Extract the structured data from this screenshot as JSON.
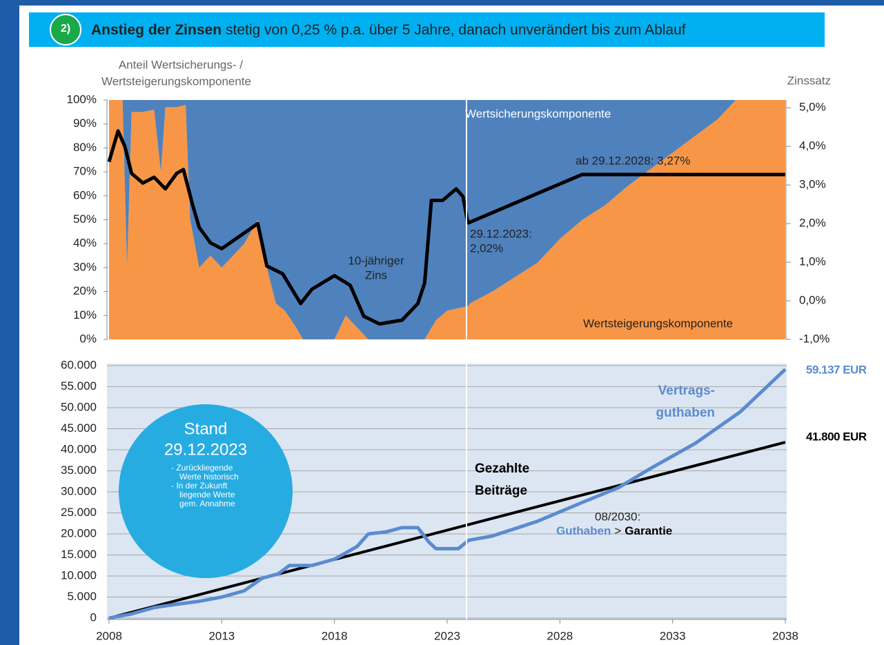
{
  "banner": {
    "number": "2)",
    "title_bold": "Anstieg der Zinsen",
    "title_rest": "stetig von 0,25 % p.a. über 5 Jahre, danach unverändert bis zum Ablauf"
  },
  "chart_data": [
    {
      "type": "area",
      "stacked": true,
      "y_label": [
        "Anteil Wertsicherungs- /",
        "Wertsteigerungskomponente"
      ],
      "y2_label": "Zinssatz",
      "xlim": [
        2008,
        2038
      ],
      "ylim": [
        0,
        100
      ],
      "yticks": [
        {
          "value": 0,
          "label": "0%"
        },
        {
          "value": 10,
          "label": "10%"
        },
        {
          "value": 20,
          "label": "20%"
        },
        {
          "value": 30,
          "label": "30%"
        },
        {
          "value": 40,
          "label": "40%"
        },
        {
          "value": 50,
          "label": "50%"
        },
        {
          "value": 60,
          "label": "60%"
        },
        {
          "value": 70,
          "label": "70%"
        },
        {
          "value": 80,
          "label": "80%"
        },
        {
          "value": 90,
          "label": "90%"
        },
        {
          "value": 100,
          "label": "100%"
        }
      ],
      "y2lim": [
        -1,
        5.2
      ],
      "y2ticks": [
        {
          "value": -1,
          "label": "-1,0%"
        },
        {
          "value": 0,
          "label": "0,0%"
        },
        {
          "value": 1,
          "label": "1,0%"
        },
        {
          "value": 2,
          "label": "2,0%"
        },
        {
          "value": 3,
          "label": "3,0%"
        },
        {
          "value": 4,
          "label": "4,0%"
        },
        {
          "value": 5,
          "label": "5,0%"
        }
      ],
      "series": [
        {
          "name": "Wertsteigerungskomponente",
          "color": "#f79646",
          "x": [
            2008,
            2008.6,
            2008.8,
            2009,
            2009.5,
            2010,
            2010.3,
            2010.5,
            2011,
            2011.4,
            2011.6,
            2012,
            2012.5,
            2013,
            2013.5,
            2014,
            2014.6,
            2015,
            2015.4,
            2015.8,
            2016.3,
            2016.6,
            2018,
            2018.5,
            2019,
            2019.5,
            2022,
            2022.5,
            2023,
            2023.95,
            2024,
            2025,
            2026,
            2027,
            2028,
            2029,
            2030,
            2031,
            2032,
            2033,
            2034,
            2035,
            2035.8,
            2038
          ],
          "values": [
            100,
            100,
            30,
            95,
            95,
            96,
            70,
            97,
            97,
            98,
            50,
            30,
            35,
            30,
            35,
            40,
            50,
            30,
            15,
            12,
            5,
            0,
            0,
            10,
            5,
            0,
            0,
            8,
            12,
            14,
            15,
            20,
            26,
            32,
            42,
            50,
            56,
            64,
            71,
            78,
            85,
            92,
            100,
            100
          ]
        },
        {
          "name": "Wertsicherungskomponente",
          "color": "#4f81bd",
          "x": [
            2008,
            2008.6,
            2008.8,
            2009,
            2009.5,
            2010,
            2010.3,
            2010.5,
            2011,
            2011.4,
            2011.6,
            2012,
            2012.5,
            2013,
            2013.5,
            2014,
            2014.6,
            2015,
            2015.4,
            2015.8,
            2016.3,
            2016.6,
            2018,
            2018.5,
            2019,
            2019.5,
            2022,
            2022.5,
            2023,
            2023.95,
            2024,
            2025,
            2026,
            2027,
            2028,
            2029,
            2030,
            2031,
            2032,
            2033,
            2034,
            2035,
            2035.8,
            2038
          ],
          "values": [
            0,
            0,
            70,
            5,
            5,
            4,
            30,
            3,
            3,
            2,
            50,
            70,
            65,
            70,
            65,
            60,
            50,
            70,
            85,
            88,
            95,
            100,
            100,
            90,
            95,
            100,
            100,
            92,
            88,
            86,
            85,
            80,
            74,
            68,
            58,
            50,
            44,
            36,
            29,
            22,
            15,
            8,
            0,
            0
          ]
        },
        {
          "name": [
            "10-jähriger",
            "Zins"
          ],
          "type": "line",
          "axis": "y2",
          "color": "#000000",
          "x": [
            2008,
            2008.4,
            2008.7,
            2009,
            2009.5,
            2010,
            2010.5,
            2011,
            2011.3,
            2011.7,
            2012,
            2012.5,
            2013,
            2014.6,
            2015,
            2015.7,
            2016.5,
            2017,
            2018,
            2018.7,
            2019.3,
            2020,
            2021,
            2021.7,
            2022,
            2022.3,
            2022.8,
            2023.4,
            2023.7,
            2023.9,
            2023.95,
            2028.98,
            2038
          ],
          "values": [
            3.6,
            4.4,
            4.0,
            3.3,
            3.05,
            3.2,
            2.9,
            3.3,
            3.4,
            2.5,
            1.9,
            1.5,
            1.35,
            2.0,
            0.9,
            0.7,
            -0.07,
            0.3,
            0.65,
            0.4,
            -0.4,
            -0.6,
            -0.5,
            -0.07,
            0.46,
            2.6,
            2.6,
            2.9,
            2.7,
            2.07,
            2.02,
            3.27,
            3.27
          ]
        }
      ],
      "annotations": [
        {
          "text": "ab 29.12.2028: 3,27%"
        },
        {
          "text": [
            "29.12.2023:",
            "2,02%"
          ]
        }
      ]
    },
    {
      "type": "line",
      "xlim": [
        2008,
        2038
      ],
      "xticks": [
        2008,
        2013,
        2018,
        2023,
        2028,
        2033,
        2038
      ],
      "ylim": [
        0,
        60000
      ],
      "yticks": [
        0,
        {
          "value": 5000,
          "label": "5.000"
        },
        {
          "value": 10000,
          "label": "10.000"
        },
        {
          "value": 15000,
          "label": "15.000"
        },
        {
          "value": 20000,
          "label": "20.000"
        },
        {
          "value": 25000,
          "label": "25.000"
        },
        {
          "value": 30000,
          "label": "30.000"
        },
        {
          "value": 35000,
          "label": "35.000"
        },
        {
          "value": 40000,
          "label": "40.000"
        },
        {
          "value": 45000,
          "label": "45.000"
        },
        {
          "value": 50000,
          "label": "50.000"
        },
        {
          "value": 55000,
          "label": "55.000"
        },
        {
          "value": 60000,
          "label": "60.000"
        }
      ],
      "grid": true,
      "series": [
        {
          "name": [
            "Gezahlte",
            "Beiträge"
          ],
          "color": "#000000",
          "x": [
            2008,
            2038
          ],
          "values": [
            0,
            41800
          ],
          "end_label": "41.800 EUR"
        },
        {
          "name": [
            "Vertrags-",
            "guthaben"
          ],
          "color": "#5b8bd0",
          "x": [
            2008,
            2009,
            2010,
            2011,
            2012,
            2013,
            2014,
            2014.8,
            2015.5,
            2016,
            2017,
            2018,
            2019,
            2019.5,
            2020.3,
            2021,
            2021.7,
            2022.2,
            2022.5,
            2023.5,
            2023.95,
            2025,
            2027,
            2029,
            2030.6,
            2032,
            2034,
            2036,
            2038
          ],
          "values": [
            0,
            1000,
            2500,
            3300,
            4000,
            5000,
            6500,
            9500,
            10500,
            12500,
            12500,
            14000,
            17000,
            20000,
            20500,
            21500,
            21500,
            18000,
            16500,
            16500,
            18500,
            19500,
            23000,
            27500,
            31000,
            35500,
            41500,
            49000,
            59137
          ],
          "end_label": "59.137 EUR"
        }
      ],
      "annotations": [
        {
          "text": "08/2030:"
        },
        {
          "parts": [
            "Guthaben",
            ">",
            "Garantie"
          ]
        }
      ],
      "inset": {
        "title": "Stand",
        "date": "29.12.2023",
        "bullets": [
          [
            "- Zurückliegende",
            "Werte historisch"
          ],
          [
            "- In der Zukunft",
            "liegende Werte",
            "gem. Annahme"
          ]
        ]
      }
    }
  ]
}
